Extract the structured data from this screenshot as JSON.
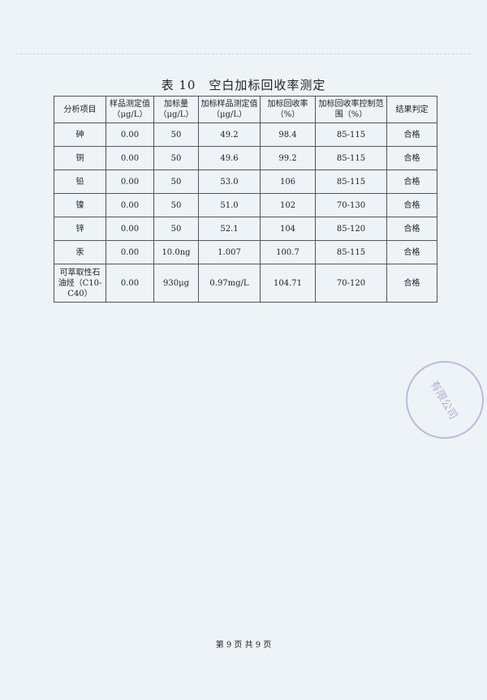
{
  "title": "表 10　空白加标回收率测定",
  "headers": [
    "分析项目",
    "样品测定值（μg/L）",
    "加标量（μg/L）",
    "加标样品测定值（μg/L）",
    "加标回收率（%）",
    "加标回收率控制范围（%）",
    "结果判定"
  ],
  "rows": [
    [
      "砷",
      "0.00",
      "50",
      "49.2",
      "98.4",
      "85-115",
      "合格"
    ],
    [
      "铜",
      "0.00",
      "50",
      "49.6",
      "99.2",
      "85-115",
      "合格"
    ],
    [
      "铅",
      "0.00",
      "50",
      "53.0",
      "106",
      "85-115",
      "合格"
    ],
    [
      "镍",
      "0.00",
      "50",
      "51.0",
      "102",
      "70-130",
      "合格"
    ],
    [
      "锌",
      "0.00",
      "50",
      "52.1",
      "104",
      "85-120",
      "合格"
    ],
    [
      "汞",
      "0.00",
      "10.0ng",
      "1.007",
      "100.7",
      "85-115",
      "合格"
    ],
    [
      "可萃取性石油烃（C10-C40）",
      "0.00",
      "930μg",
      "0.97mg/L",
      "104.71",
      "70-120",
      "合格"
    ]
  ],
  "footer": "第 9 页 共 9 页",
  "stamp_text": "有限公司"
}
